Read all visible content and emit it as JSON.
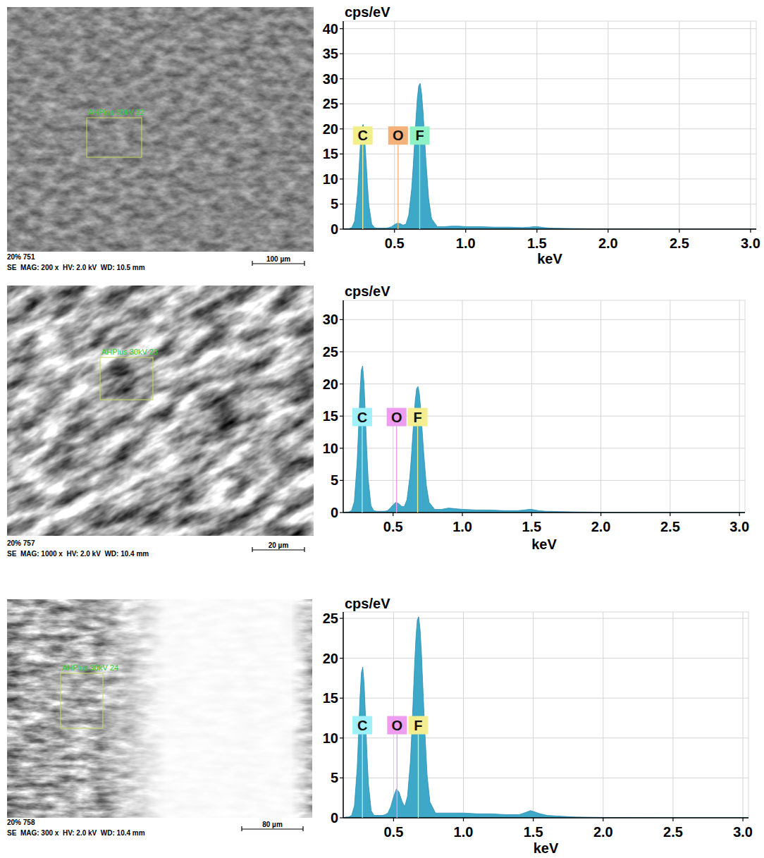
{
  "chart_data": [
    {
      "type": "area",
      "y_label": "cps/eV",
      "x_label": "keV",
      "x": [
        0.14,
        0.16,
        0.18,
        0.2,
        0.22,
        0.24,
        0.25,
        0.26,
        0.27,
        0.28,
        0.29,
        0.3,
        0.31,
        0.32,
        0.34,
        0.36,
        0.38,
        0.4,
        0.42,
        0.44,
        0.46,
        0.48,
        0.5,
        0.52,
        0.54,
        0.56,
        0.58,
        0.6,
        0.62,
        0.63,
        0.64,
        0.65,
        0.66,
        0.67,
        0.68,
        0.69,
        0.7,
        0.71,
        0.72,
        0.74,
        0.76,
        0.8,
        0.85,
        0.9,
        0.95,
        1.0,
        1.1,
        1.2,
        1.3,
        1.4,
        1.45,
        1.48,
        1.5,
        1.55,
        1.6,
        1.7,
        1.8,
        2.0,
        2.2,
        2.4,
        2.6,
        2.8,
        3.0,
        3.04
      ],
      "series": [
        {
          "color": "#3ea8c9",
          "values": [
            0,
            0.1,
            0.1,
            0.3,
            1.6,
            7.0,
            11.7,
            16.7,
            20.2,
            20.9,
            18.4,
            13.8,
            8.8,
            4.8,
            1.0,
            0.3,
            0.2,
            0.2,
            0.2,
            0.2,
            0.3,
            0.5,
            0.9,
            1.2,
            1.1,
            0.8,
            1.0,
            2.8,
            7.9,
            12.0,
            16.8,
            21.7,
            26.0,
            28.6,
            29.1,
            27.1,
            23.6,
            18.8,
            13.9,
            6.0,
            2.1,
            0.5,
            0.5,
            0.6,
            0.6,
            0.5,
            0.5,
            0.4,
            0.4,
            0.3,
            0.4,
            0.5,
            0.5,
            0.3,
            0.2,
            0.15,
            0.1,
            0.05,
            0.05,
            0.03,
            0.02,
            0.02,
            0.02,
            0.02
          ]
        }
      ],
      "annotations": [
        {
          "label": "C",
          "x": 0.277,
          "color": "#f3ee8c"
        },
        {
          "label": "O",
          "x": 0.525,
          "color": "#f4b27a"
        },
        {
          "label": "F",
          "x": 0.677,
          "color": "#8ef2c4"
        }
      ],
      "xlim": [
        0.14,
        3.04
      ],
      "xticks": [
        0.5,
        {
          "value": 1,
          "label": "1.0"
        },
        1.5,
        {
          "value": 2,
          "label": "2.0"
        },
        2.5,
        {
          "value": 3,
          "label": "3.0"
        }
      ],
      "ylim": [
        0,
        41.5
      ],
      "yticks": [
        0,
        5,
        10,
        15,
        20,
        25,
        30,
        35,
        40
      ],
      "grid": true
    },
    {
      "type": "area",
      "y_label": "cps/eV",
      "x_label": "keV",
      "x": [
        0.14,
        0.16,
        0.18,
        0.2,
        0.22,
        0.24,
        0.25,
        0.26,
        0.27,
        0.28,
        0.29,
        0.3,
        0.31,
        0.32,
        0.34,
        0.36,
        0.38,
        0.4,
        0.42,
        0.44,
        0.46,
        0.48,
        0.5,
        0.52,
        0.54,
        0.56,
        0.58,
        0.6,
        0.62,
        0.63,
        0.64,
        0.65,
        0.66,
        0.67,
        0.68,
        0.69,
        0.7,
        0.71,
        0.72,
        0.74,
        0.76,
        0.8,
        0.85,
        0.9,
        0.95,
        1.0,
        1.1,
        1.2,
        1.3,
        1.4,
        1.45,
        1.48,
        1.5,
        1.55,
        1.6,
        1.7,
        1.8,
        2.0,
        2.2,
        2.4,
        2.6,
        2.8,
        3.0,
        3.04
      ],
      "series": [
        {
          "color": "#3ea8c9",
          "values": [
            0,
            0.1,
            0.1,
            0.3,
            1.7,
            7.7,
            12.8,
            18.3,
            22.1,
            22.8,
            20.1,
            15.1,
            9.6,
            5.2,
            1.1,
            0.3,
            0.2,
            0.2,
            0.2,
            0.2,
            0.3,
            0.7,
            1.2,
            1.6,
            1.4,
            1.0,
            0.9,
            2.0,
            5.4,
            8.1,
            11.4,
            14.7,
            17.5,
            19.3,
            19.6,
            18.4,
            15.9,
            12.7,
            9.5,
            4.2,
            1.6,
            0.5,
            0.5,
            0.7,
            0.6,
            0.5,
            0.4,
            0.4,
            0.3,
            0.3,
            0.4,
            0.5,
            0.5,
            0.3,
            0.2,
            0.15,
            0.1,
            0.05,
            0.05,
            0.03,
            0.02,
            0.02,
            0.02,
            0.02
          ]
        }
      ],
      "annotations": [
        {
          "label": "C",
          "x": 0.277,
          "color": "#9ff0f8"
        },
        {
          "label": "O",
          "x": 0.525,
          "color": "#ee9cf0"
        },
        {
          "label": "F",
          "x": 0.677,
          "color": "#f4ee90"
        }
      ],
      "xlim": [
        0.14,
        3.04
      ],
      "xticks": [
        0.5,
        {
          "value": 1,
          "label": "1.0"
        },
        1.5,
        {
          "value": 2,
          "label": "2.0"
        },
        2.5,
        {
          "value": 3,
          "label": "3.0"
        }
      ],
      "ylim": [
        0,
        33
      ],
      "yticks": [
        0,
        5,
        10,
        15,
        20,
        25,
        30
      ],
      "grid": true
    },
    {
      "type": "area",
      "y_label": "cps/eV",
      "x_label": "keV",
      "x": [
        0.14,
        0.16,
        0.18,
        0.2,
        0.22,
        0.24,
        0.25,
        0.26,
        0.27,
        0.28,
        0.29,
        0.3,
        0.31,
        0.32,
        0.34,
        0.36,
        0.38,
        0.4,
        0.42,
        0.44,
        0.46,
        0.48,
        0.5,
        0.52,
        0.54,
        0.56,
        0.58,
        0.6,
        0.62,
        0.63,
        0.64,
        0.65,
        0.66,
        0.67,
        0.68,
        0.69,
        0.7,
        0.71,
        0.72,
        0.74,
        0.76,
        0.8,
        0.85,
        0.9,
        0.95,
        1.0,
        1.1,
        1.2,
        1.3,
        1.4,
        1.45,
        1.48,
        1.5,
        1.55,
        1.6,
        1.7,
        1.8,
        2.0,
        2.2,
        2.4,
        2.6,
        2.8,
        3.0,
        3.04
      ],
      "series": [
        {
          "color": "#3ea8c9",
          "values": [
            0,
            0.1,
            0.1,
            0.3,
            1.5,
            6.3,
            10.6,
            15.1,
            18.2,
            18.9,
            16.6,
            12.4,
            7.9,
            4.3,
            0.9,
            0.3,
            0.3,
            0.3,
            0.3,
            0.4,
            0.6,
            1.4,
            2.6,
            3.6,
            3.2,
            2.1,
            1.4,
            2.7,
            6.9,
            10.5,
            14.6,
            18.9,
            22.5,
            24.8,
            25.2,
            23.6,
            20.5,
            16.3,
            12.2,
            5.4,
            2.0,
            0.6,
            0.6,
            0.6,
            0.6,
            0.6,
            0.5,
            0.5,
            0.4,
            0.4,
            0.7,
            0.9,
            0.8,
            0.5,
            0.3,
            0.2,
            0.1,
            0.05,
            0.05,
            0.03,
            0.02,
            0.02,
            0.02,
            0.02
          ]
        }
      ],
      "annotations": [
        {
          "label": "C",
          "x": 0.277,
          "color": "#9ff0f8"
        },
        {
          "label": "O",
          "x": 0.525,
          "color": "#ee9cf0"
        },
        {
          "label": "F",
          "x": 0.677,
          "color": "#f4ee90"
        }
      ],
      "xlim": [
        0.14,
        3.04
      ],
      "xticks": [
        0.5,
        {
          "value": 1,
          "label": "1.0"
        },
        1.5,
        {
          "value": 2,
          "label": "2.0"
        },
        2.5,
        {
          "value": 3,
          "label": "3.0"
        }
      ],
      "ylim": [
        0,
        25.8
      ],
      "yticks": [
        0,
        5,
        10,
        15,
        20,
        25
      ],
      "grid": true
    }
  ],
  "micrographs": [
    {
      "sample": "20% 751",
      "info": "SE  MAG: 200 x  HV: 2.0 kV  WD: 10.5 mm",
      "scale_bar": "100 µm",
      "region_label": "AHPlus 30kV 22"
    },
    {
      "sample": "20% 757",
      "info": "SE  MAG: 1000 x  HV: 2.0 kV  WD: 10.4 mm",
      "scale_bar": "20 µm",
      "region_label": "AHPlus 30kV 23"
    },
    {
      "sample": "20% 758",
      "info": "SE  MAG: 300 x  HV: 2.0 kV  WD: 10.4 mm",
      "scale_bar": "80 µm",
      "region_label": "AHPlus 30kV 24"
    }
  ]
}
